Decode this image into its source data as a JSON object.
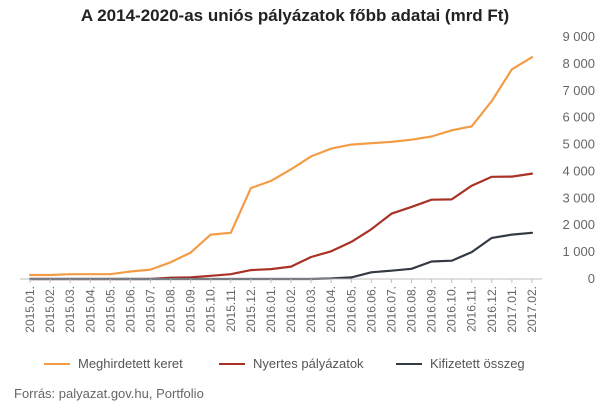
{
  "title": "A 2014-2020-as uniós pályázatok főbb adatai (mrd Ft)",
  "source": "Forrás: palyazat.gov.hu, Portfolio",
  "chart_data": {
    "type": "line",
    "title": "A 2014-2020-as uniós pályázatok főbb adatai (mrd Ft)",
    "xlabel": "",
    "ylabel": "",
    "ylim": [
      0,
      9000
    ],
    "yticks": [
      0,
      1000,
      2000,
      3000,
      4000,
      5000,
      6000,
      7000,
      8000,
      9000
    ],
    "ytick_labels": [
      "0",
      "1 000",
      "2 000",
      "3 000",
      "4 000",
      "5 000",
      "6 000",
      "7 000",
      "8 000",
      "9 000"
    ],
    "grid": false,
    "y_axis_side": "right",
    "legend_position": "bottom",
    "categories": [
      "2015.01.",
      "2015.02.",
      "2015.03.",
      "2015.04.",
      "2015.05.",
      "2015.06.",
      "2015.07.",
      "2015.08.",
      "2015.09.",
      "2015.10.",
      "2015.11.",
      "2015.12.",
      "2016.01.",
      "2016.02.",
      "2016.03.",
      "2016.04.",
      "2016.05.",
      "2016.06.",
      "2016.07.",
      "2016.08.",
      "2016.09.",
      "2016.10.",
      "2016.11.",
      "2016.12.",
      "2017.01.",
      "2017.02."
    ],
    "series": [
      {
        "name": "Meghirdetett keret",
        "color": "#f39c45",
        "values": [
          150,
          150,
          180,
          180,
          180,
          280,
          350,
          620,
          980,
          1650,
          1720,
          3380,
          3650,
          4080,
          4560,
          4850,
          5000,
          5050,
          5100,
          5180,
          5300,
          5530,
          5680,
          6620,
          7800,
          8250
        ]
      },
      {
        "name": "Nyertes pályázatok",
        "color": "#a93226",
        "values": [
          0,
          0,
          0,
          0,
          0,
          0,
          0,
          50,
          60,
          120,
          180,
          330,
          370,
          460,
          820,
          1030,
          1380,
          1850,
          2430,
          2680,
          2950,
          2960,
          3470,
          3800,
          3810,
          3920
        ]
      },
      {
        "name": "Kifizetett összeg",
        "color": "#333a44",
        "values": [
          0,
          0,
          0,
          0,
          0,
          0,
          0,
          0,
          0,
          0,
          0,
          0,
          0,
          0,
          0,
          20,
          60,
          250,
          310,
          380,
          650,
          680,
          1000,
          1530,
          1650,
          1720
        ]
      }
    ]
  }
}
